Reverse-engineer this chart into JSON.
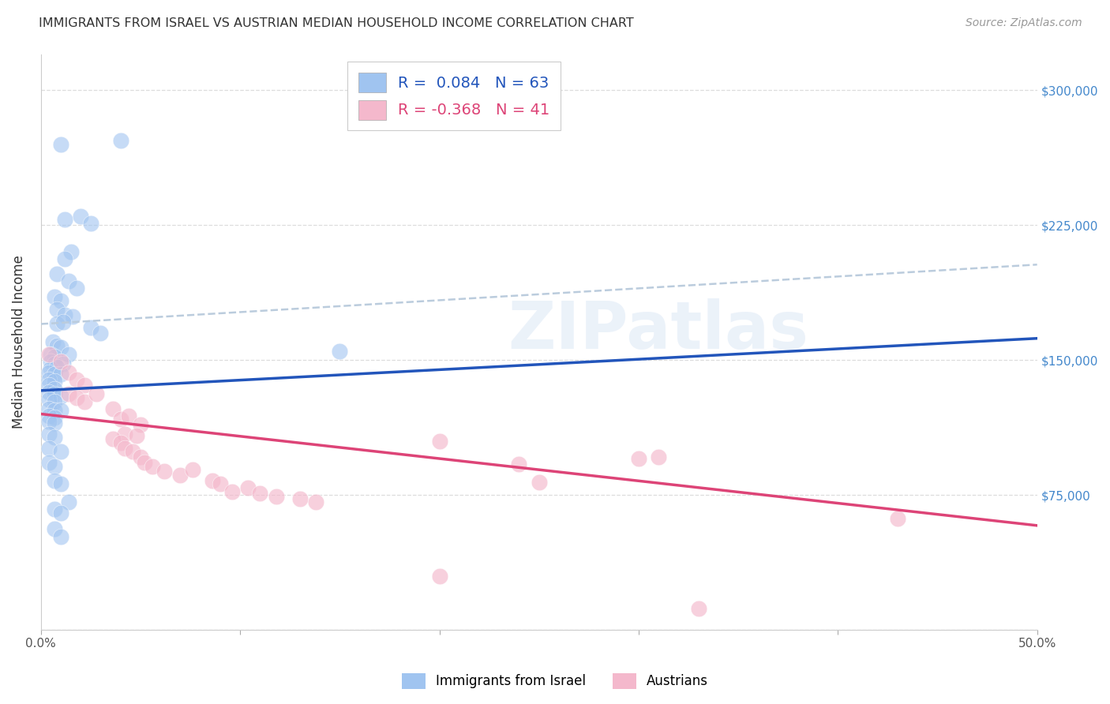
{
  "title": "IMMIGRANTS FROM ISRAEL VS AUSTRIAN MEDIAN HOUSEHOLD INCOME CORRELATION CHART",
  "source": "Source: ZipAtlas.com",
  "ylabel": "Median Household Income",
  "xlim": [
    0.0,
    0.5
  ],
  "ylim": [
    0,
    320000
  ],
  "yticks": [
    0,
    75000,
    150000,
    225000,
    300000
  ],
  "ytick_labels": [
    "",
    "$75,000",
    "$150,000",
    "$225,000",
    "$300,000"
  ],
  "xticks": [
    0.0,
    0.1,
    0.2,
    0.3,
    0.4,
    0.5
  ],
  "xtick_labels": [
    "0.0%",
    "",
    "",
    "",
    "",
    "50.0%"
  ],
  "legend_label1": "R =  0.084   N = 63",
  "legend_label2": "R = -0.368   N = 41",
  "legend_bottom_label1": "Immigrants from Israel",
  "legend_bottom_label2": "Austrians",
  "blue_color": "#a0c4f0",
  "pink_color": "#f4b8cc",
  "line_blue": "#2255bb",
  "line_pink": "#dd4477",
  "line_dashed_color": "#bbccdd",
  "watermark_text": "ZIPatlas",
  "blue_scatter": [
    [
      0.01,
      270000
    ],
    [
      0.04,
      272000
    ],
    [
      0.012,
      228000
    ],
    [
      0.02,
      230000
    ],
    [
      0.025,
      226000
    ],
    [
      0.015,
      210000
    ],
    [
      0.012,
      206000
    ],
    [
      0.008,
      198000
    ],
    [
      0.014,
      194000
    ],
    [
      0.018,
      190000
    ],
    [
      0.007,
      185000
    ],
    [
      0.01,
      183000
    ],
    [
      0.008,
      178000
    ],
    [
      0.012,
      175000
    ],
    [
      0.016,
      174000
    ],
    [
      0.008,
      170000
    ],
    [
      0.011,
      171000
    ],
    [
      0.025,
      168000
    ],
    [
      0.03,
      165000
    ],
    [
      0.006,
      160000
    ],
    [
      0.008,
      158000
    ],
    [
      0.01,
      157000
    ],
    [
      0.005,
      153000
    ],
    [
      0.007,
      152000
    ],
    [
      0.014,
      153000
    ],
    [
      0.005,
      149000
    ],
    [
      0.007,
      148000
    ],
    [
      0.011,
      148000
    ],
    [
      0.005,
      145000
    ],
    [
      0.008,
      146000
    ],
    [
      0.004,
      143000
    ],
    [
      0.007,
      142000
    ],
    [
      0.01,
      142000
    ],
    [
      0.004,
      139000
    ],
    [
      0.007,
      138000
    ],
    [
      0.004,
      136000
    ],
    [
      0.007,
      134000
    ],
    [
      0.004,
      132000
    ],
    [
      0.007,
      131000
    ],
    [
      0.01,
      130000
    ],
    [
      0.004,
      128000
    ],
    [
      0.007,
      127000
    ],
    [
      0.004,
      123000
    ],
    [
      0.007,
      122000
    ],
    [
      0.01,
      122000
    ],
    [
      0.004,
      119000
    ],
    [
      0.007,
      118000
    ],
    [
      0.004,
      116000
    ],
    [
      0.007,
      115000
    ],
    [
      0.15,
      155000
    ],
    [
      0.004,
      109000
    ],
    [
      0.007,
      107000
    ],
    [
      0.004,
      101000
    ],
    [
      0.01,
      99000
    ],
    [
      0.004,
      93000
    ],
    [
      0.007,
      91000
    ],
    [
      0.007,
      83000
    ],
    [
      0.01,
      81000
    ],
    [
      0.014,
      71000
    ],
    [
      0.007,
      67000
    ],
    [
      0.01,
      65000
    ],
    [
      0.007,
      56000
    ],
    [
      0.01,
      52000
    ]
  ],
  "pink_scatter": [
    [
      0.004,
      153000
    ],
    [
      0.01,
      149000
    ],
    [
      0.014,
      143000
    ],
    [
      0.018,
      139000
    ],
    [
      0.022,
      136000
    ],
    [
      0.014,
      131000
    ],
    [
      0.018,
      129000
    ],
    [
      0.022,
      127000
    ],
    [
      0.028,
      131000
    ],
    [
      0.036,
      123000
    ],
    [
      0.04,
      117000
    ],
    [
      0.044,
      119000
    ],
    [
      0.05,
      114000
    ],
    [
      0.042,
      109000
    ],
    [
      0.048,
      108000
    ],
    [
      0.036,
      106000
    ],
    [
      0.04,
      104000
    ],
    [
      0.042,
      101000
    ],
    [
      0.046,
      99000
    ],
    [
      0.05,
      96000
    ],
    [
      0.052,
      93000
    ],
    [
      0.056,
      91000
    ],
    [
      0.062,
      88000
    ],
    [
      0.07,
      86000
    ],
    [
      0.076,
      89000
    ],
    [
      0.086,
      83000
    ],
    [
      0.09,
      81000
    ],
    [
      0.104,
      79000
    ],
    [
      0.096,
      77000
    ],
    [
      0.11,
      76000
    ],
    [
      0.118,
      74000
    ],
    [
      0.13,
      73000
    ],
    [
      0.138,
      71000
    ],
    [
      0.2,
      105000
    ],
    [
      0.24,
      92000
    ],
    [
      0.25,
      82000
    ],
    [
      0.3,
      95000
    ],
    [
      0.31,
      96000
    ],
    [
      0.43,
      62000
    ],
    [
      0.2,
      30000
    ],
    [
      0.33,
      12000
    ]
  ],
  "blue_line": [
    [
      0.0,
      133000
    ],
    [
      0.5,
      162000
    ]
  ],
  "pink_line": [
    [
      0.0,
      120000
    ],
    [
      0.5,
      58000
    ]
  ],
  "dashed_line": [
    [
      0.0,
      170000
    ],
    [
      0.5,
      203000
    ]
  ],
  "background_color": "#ffffff",
  "grid_color": "#dddddd"
}
